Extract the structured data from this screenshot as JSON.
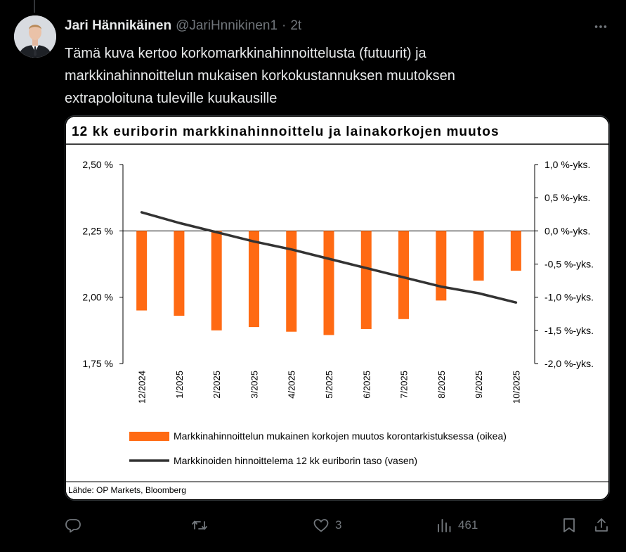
{
  "tweet": {
    "author_name": "Jari Hännikäinen",
    "handle": "@JariHnnikinen1",
    "separator": "·",
    "time": "2t",
    "text_lines": [
      "Tämä kuva kertoo korkomarkkinahinnoittelusta (futuurit) ja",
      "markkinahinnoittelun mukaisen korkokustannuksen muutoksen",
      "extrapoloituna tuleville kuukausille"
    ]
  },
  "actions": {
    "reply_count": "",
    "retweet_count": "",
    "like_count": "3",
    "views_count": "461"
  },
  "icons": {
    "more": "more-icon",
    "reply": "reply-icon",
    "retweet": "retweet-icon",
    "like": "heart-icon",
    "views": "views-icon",
    "bookmark": "bookmark-icon",
    "share": "share-icon"
  },
  "chart_data": {
    "type": "bar",
    "title": "12 kk euriborin markkinahinnoittelu ja lainakorkojen muutos",
    "source": "Lähde: OP Markets, Bloomberg",
    "categories": [
      "12/2024",
      "1/2025",
      "2/2025",
      "3/2025",
      "4/2025",
      "5/2025",
      "6/2025",
      "7/2025",
      "8/2025",
      "9/2025",
      "10/2025"
    ],
    "left_axis": {
      "min": 1.75,
      "max": 2.5,
      "ticks": [
        "2,50 %",
        "2,25 %",
        "2,00 %",
        "1,75 %"
      ]
    },
    "right_axis": {
      "min": -2.0,
      "max": 1.0,
      "ticks": [
        "1,0 %-yks.",
        "0,5 %-yks.",
        "0,0 %-yks.",
        "-0,5 %-yks.",
        "-1,0 %-yks.",
        "-1,5 %-yks.",
        "-2,0 %-yks."
      ]
    },
    "series": [
      {
        "name": "Markkinahinnoittelun mukainen korkojen muutos korontarkistuksessa (oikea)",
        "type": "bar",
        "axis": "right",
        "color": "#ff6a13",
        "values": [
          -1.2,
          -1.28,
          -1.5,
          -1.45,
          -1.52,
          -1.57,
          -1.48,
          -1.33,
          -1.05,
          -0.75,
          -0.6
        ]
      },
      {
        "name": "Markkinoiden hinnoittelema 12 kk euriborin taso (vasen)",
        "type": "line",
        "axis": "left",
        "color": "#333333",
        "values": [
          2.32,
          2.28,
          2.245,
          2.21,
          2.18,
          2.145,
          2.11,
          2.075,
          2.04,
          2.015,
          1.98
        ]
      }
    ],
    "legend_position": "bottom",
    "grid": false
  }
}
